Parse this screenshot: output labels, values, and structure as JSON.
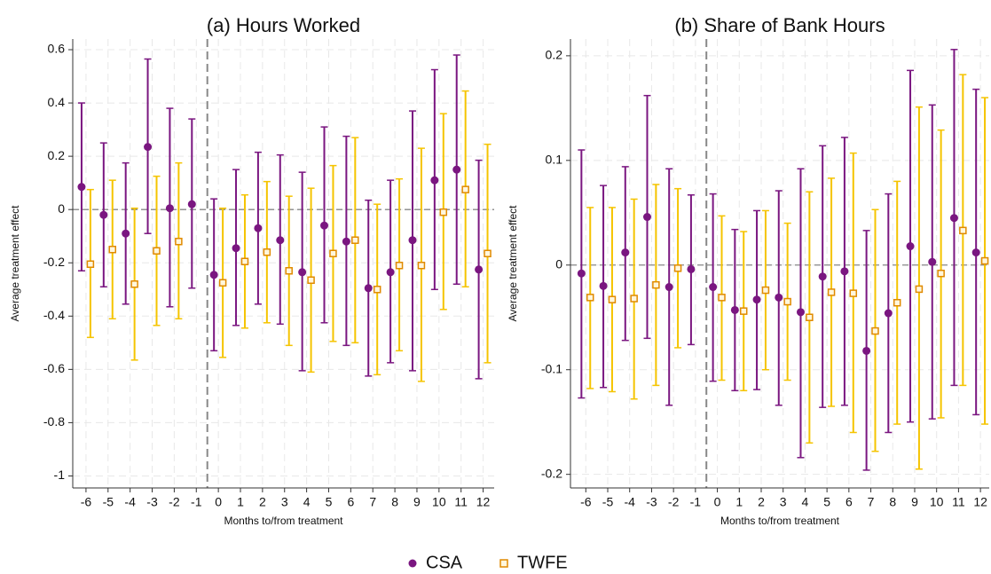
{
  "chart_data": [
    {
      "type": "errorbar",
      "title": "(a) Hours Worked",
      "xlabel": "Months to/from treatment",
      "ylabel": "Average treatment effect",
      "x": [
        -6,
        -5,
        -4,
        -3,
        -2,
        -1,
        0,
        1,
        2,
        3,
        4,
        5,
        6,
        7,
        8,
        9,
        10,
        11,
        12
      ],
      "xlim": [
        -6.6,
        12.5
      ],
      "ylim": [
        -1.045,
        0.64
      ],
      "yticks": [
        -1,
        -0.8,
        -0.6,
        -0.4,
        -0.2,
        0,
        0.2,
        0.4,
        0.6
      ],
      "grid": true,
      "vline": -0.5,
      "hline": 0,
      "legend": "bottom",
      "series": [
        {
          "name": "CSA",
          "color": "#7a1680",
          "marker": "circle",
          "values": [
            0.085,
            -0.02,
            -0.09,
            0.235,
            0.005,
            0.02,
            -0.245,
            -0.145,
            -0.07,
            -0.115,
            -0.235,
            -0.06,
            -0.12,
            -0.295,
            -0.235,
            -0.115,
            0.11,
            0.15,
            -0.225
          ],
          "lower": [
            -0.23,
            -0.29,
            -0.355,
            -0.09,
            -0.365,
            -0.295,
            -0.53,
            -0.435,
            -0.355,
            -0.43,
            -0.605,
            -0.425,
            -0.51,
            -0.625,
            -0.575,
            -0.605,
            -0.3,
            -0.28,
            -0.635
          ],
          "upper": [
            0.4,
            0.25,
            0.175,
            0.565,
            0.38,
            0.34,
            0.04,
            0.15,
            0.215,
            0.205,
            0.14,
            0.31,
            0.275,
            0.035,
            0.11,
            0.37,
            0.525,
            0.58,
            0.185
          ]
        },
        {
          "name": "TWFE",
          "color": "#f5c400",
          "edge": "#e08a00",
          "marker": "square",
          "values": [
            -0.205,
            -0.15,
            -0.28,
            -0.155,
            -0.12,
            null,
            -0.275,
            -0.195,
            -0.16,
            -0.23,
            -0.265,
            -0.165,
            -0.115,
            -0.3,
            -0.21,
            -0.21,
            -0.01,
            0.075,
            -0.165
          ],
          "lower": [
            -0.48,
            -0.41,
            -0.565,
            -0.435,
            -0.41,
            null,
            -0.555,
            -0.445,
            -0.425,
            -0.51,
            -0.61,
            -0.495,
            -0.5,
            -0.62,
            -0.53,
            -0.645,
            -0.375,
            -0.29,
            -0.575
          ],
          "upper": [
            0.075,
            0.11,
            0.005,
            0.125,
            0.175,
            null,
            0.005,
            0.055,
            0.105,
            0.05,
            0.08,
            0.165,
            0.27,
            0.02,
            0.115,
            0.23,
            0.36,
            0.445,
            0.245
          ]
        }
      ]
    },
    {
      "type": "errorbar",
      "title": "(b) Share of Bank Hours",
      "xlabel": "Months to/from treatment",
      "ylabel": "Average treatment effect",
      "x": [
        -6,
        -5,
        -4,
        -3,
        -2,
        -1,
        0,
        1,
        2,
        3,
        4,
        5,
        6,
        7,
        8,
        9,
        10,
        11,
        12
      ],
      "xlim": [
        -6.7,
        12.4
      ],
      "ylim": [
        -0.213,
        0.216
      ],
      "yticks": [
        -0.2,
        -0.1,
        0,
        0.1,
        0.2
      ],
      "grid": true,
      "vline": -0.5,
      "hline": 0,
      "legend": "bottom",
      "series": [
        {
          "name": "CSA",
          "color": "#7a1680",
          "marker": "circle",
          "values": [
            -0.008,
            -0.02,
            0.012,
            0.046,
            -0.021,
            -0.004,
            -0.021,
            -0.043,
            -0.033,
            -0.031,
            -0.045,
            -0.011,
            -0.006,
            -0.082,
            -0.046,
            0.018,
            0.003,
            0.045,
            0.012
          ],
          "lower": [
            -0.127,
            -0.117,
            -0.072,
            -0.07,
            -0.134,
            -0.076,
            -0.111,
            -0.12,
            -0.119,
            -0.134,
            -0.184,
            -0.136,
            -0.134,
            -0.196,
            -0.16,
            -0.15,
            -0.147,
            -0.115,
            -0.143
          ],
          "upper": [
            0.11,
            0.076,
            0.094,
            0.162,
            0.092,
            0.067,
            0.068,
            0.034,
            0.052,
            0.071,
            0.092,
            0.114,
            0.122,
            0.033,
            0.068,
            0.186,
            0.153,
            0.206,
            0.168
          ]
        },
        {
          "name": "TWFE",
          "color": "#f5c400",
          "edge": "#e08a00",
          "marker": "square",
          "values": [
            -0.031,
            -0.033,
            -0.032,
            -0.019,
            -0.003,
            null,
            -0.031,
            -0.044,
            -0.024,
            -0.035,
            -0.05,
            -0.026,
            -0.027,
            -0.063,
            -0.036,
            -0.023,
            -0.008,
            0.033,
            0.004
          ],
          "lower": [
            -0.118,
            -0.121,
            -0.128,
            -0.115,
            -0.079,
            null,
            -0.11,
            -0.12,
            -0.1,
            -0.11,
            -0.17,
            -0.135,
            -0.16,
            -0.178,
            -0.152,
            -0.195,
            -0.146,
            -0.115,
            -0.152
          ],
          "upper": [
            0.055,
            0.055,
            0.063,
            0.077,
            0.073,
            null,
            0.047,
            0.032,
            0.052,
            0.04,
            0.07,
            0.083,
            0.107,
            0.053,
            0.08,
            0.151,
            0.129,
            0.182,
            0.16
          ]
        }
      ]
    }
  ]
}
